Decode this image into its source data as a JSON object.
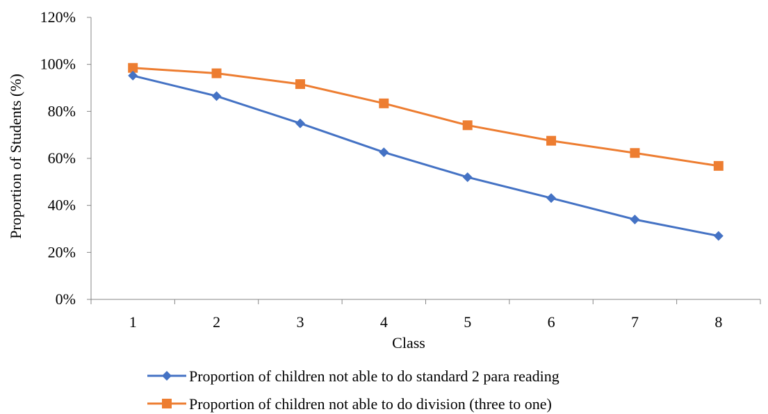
{
  "chart_data": {
    "type": "line",
    "title": "",
    "xlabel": "Class",
    "ylabel": "Proportion of Students (%)",
    "categories": [
      "1",
      "2",
      "3",
      "4",
      "5",
      "6",
      "7",
      "8"
    ],
    "ylim": [
      0,
      120
    ],
    "yticks": [
      0,
      20,
      40,
      60,
      80,
      100,
      120
    ],
    "ytick_labels": [
      "0%",
      "20%",
      "40%",
      "60%",
      "80%",
      "100%",
      "120%"
    ],
    "grid": false,
    "legend_position": "bottom",
    "series": [
      {
        "name": "Proportion of children not able to do standard 2 para reading",
        "color": "#4472C4",
        "marker": "diamond",
        "values": [
          95.2,
          86.5,
          74.9,
          62.6,
          52.0,
          43.1,
          34.0,
          27.0
        ]
      },
      {
        "name": "Proportion of children not able to do division (three to one)",
        "color": "#ED7D31",
        "marker": "square",
        "values": [
          98.5,
          96.2,
          91.6,
          83.4,
          74.1,
          67.5,
          62.3,
          56.8
        ]
      }
    ]
  }
}
